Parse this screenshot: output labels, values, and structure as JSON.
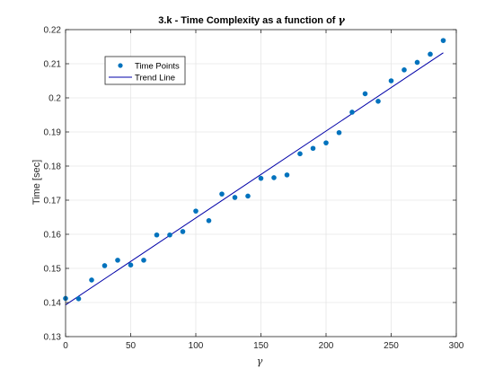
{
  "chart_data": {
    "type": "scatter",
    "title_prefix": "3.k - Time Complexity as a function of ",
    "title_symbol": "γ",
    "xlabel": "γ",
    "ylabel": "Time [sec]",
    "xlim": [
      0,
      300
    ],
    "ylim": [
      0.13,
      0.22
    ],
    "xticks": [
      0,
      50,
      100,
      150,
      200,
      250,
      300
    ],
    "yticks": [
      0.13,
      0.14,
      0.15,
      0.16,
      0.17,
      0.18,
      0.19,
      0.2,
      0.21,
      0.22
    ],
    "grid": true,
    "legend_position": "top-left",
    "series": [
      {
        "name": "Time Points",
        "kind": "markers",
        "color": "#0072BD",
        "x": [
          0,
          10,
          20,
          30,
          40,
          50,
          60,
          70,
          80,
          90,
          100,
          110,
          120,
          130,
          140,
          150,
          160,
          170,
          180,
          190,
          200,
          210,
          220,
          230,
          240,
          250,
          260,
          270,
          280,
          290
        ],
        "y": [
          0.1412,
          0.1411,
          0.1466,
          0.1508,
          0.1524,
          0.151,
          0.1524,
          0.1598,
          0.1598,
          0.1608,
          0.1668,
          0.164,
          0.1718,
          0.1708,
          0.1712,
          0.1764,
          0.1766,
          0.1774,
          0.1836,
          0.1852,
          0.1868,
          0.1898,
          0.1958,
          0.2012,
          0.199,
          0.205,
          0.2082,
          0.2104,
          0.2128,
          0.2168
        ]
      },
      {
        "name": "Trend Line",
        "kind": "line",
        "color": "#0000A8",
        "x": [
          0,
          290
        ],
        "y": [
          0.1393,
          0.2132
        ]
      }
    ]
  }
}
